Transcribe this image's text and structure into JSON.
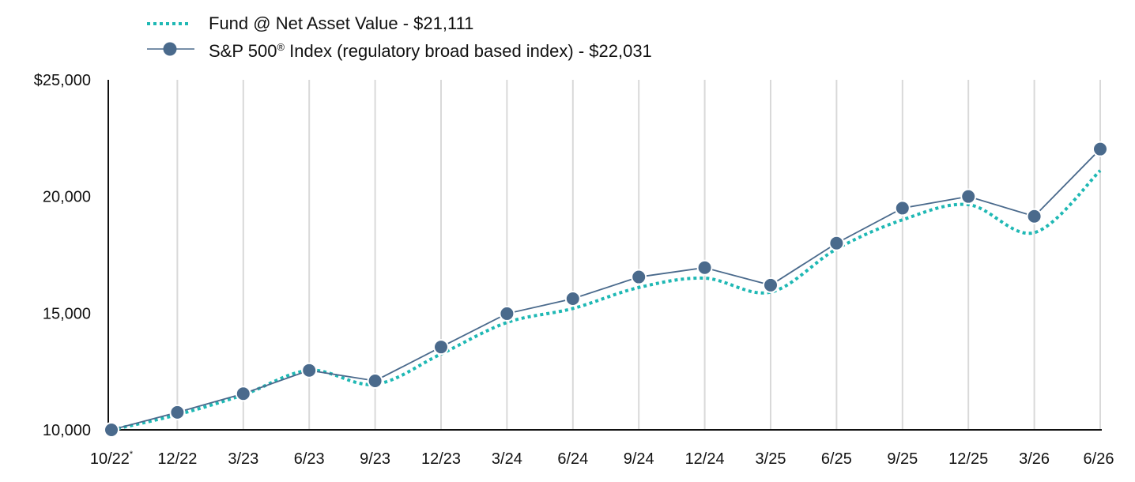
{
  "legend": {
    "fund_label": "Fund @ Net Asset Value - $21,111",
    "index_label_pre": "S&P 500",
    "index_label_sup": "®",
    "index_label_post": " Index (regulatory broad based index) - $22,031"
  },
  "chart_data": {
    "type": "line",
    "categories": [
      "10/22",
      "12/22",
      "3/23",
      "6/23",
      "9/23",
      "12/23",
      "3/24",
      "6/24",
      "9/24",
      "12/24",
      "3/25",
      "6/25",
      "9/25",
      "12/25",
      "3/26",
      "6/26"
    ],
    "first_category_marker": "*",
    "y_ticks": [
      "$25,000",
      "20,000",
      "15,000",
      "10,000"
    ],
    "ylim": [
      10000,
      25000
    ],
    "grid": "vertical",
    "legend_position": "top-left",
    "series": [
      {
        "name": "Fund @ Net Asset Value - $21,111",
        "style": "dotted",
        "color": "#1fb8b4",
        "values": [
          10000,
          10650,
          11500,
          12550,
          11950,
          13250,
          14600,
          15200,
          16100,
          16500,
          15900,
          17750,
          19000,
          19650,
          18450,
          21111
        ]
      },
      {
        "name": "S&P 500® Index (regulatory broad based index) - $22,031",
        "style": "solid-markers",
        "color": "#4a6a8c",
        "values": [
          10000,
          10750,
          11550,
          12550,
          12100,
          13550,
          14980,
          15620,
          16550,
          16950,
          16200,
          18000,
          19500,
          20000,
          19150,
          22031
        ]
      }
    ]
  }
}
